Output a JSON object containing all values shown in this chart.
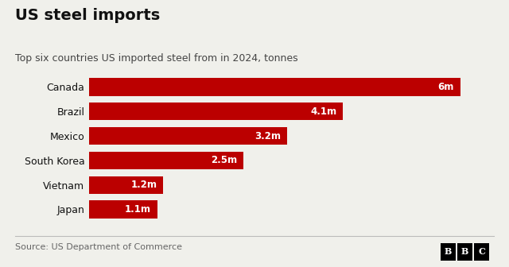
{
  "title": "US steel imports",
  "subtitle": "Top six countries US imported steel from in 2024, tonnes",
  "source": "Source: US Department of Commerce",
  "categories": [
    "Canada",
    "Brazil",
    "Mexico",
    "South Korea",
    "Vietnam",
    "Japan"
  ],
  "values": [
    6.0,
    4.1,
    3.2,
    2.5,
    1.2,
    1.1
  ],
  "labels": [
    "6m",
    "4.1m",
    "3.2m",
    "2.5m",
    "1.2m",
    "1.1m"
  ],
  "bar_color": "#bb0000",
  "label_color": "#ffffff",
  "background_color": "#f0f0eb",
  "title_color": "#111111",
  "subtitle_color": "#444444",
  "source_color": "#666666",
  "xlim": [
    0,
    6.5
  ],
  "bar_height": 0.72,
  "title_fontsize": 14,
  "subtitle_fontsize": 9,
  "label_fontsize": 8.5,
  "ytick_fontsize": 9
}
